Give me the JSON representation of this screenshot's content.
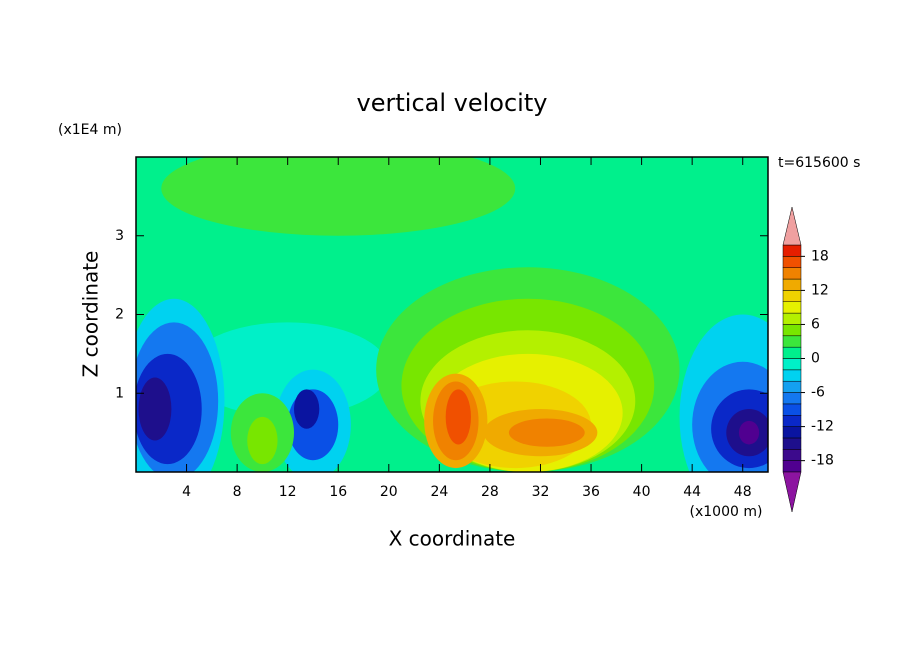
{
  "chart_data": {
    "type": "contourf",
    "title": "vertical velocity",
    "x_label": "X coordinate",
    "y_label": "Z coordinate",
    "x_unit": "(x1000 m)",
    "y_unit": "(x1E4 m)",
    "time_label": "t=615600 s",
    "xlim": [
      0,
      50
    ],
    "ylim": [
      0,
      4
    ],
    "xticks": [
      4,
      8,
      12,
      16,
      20,
      24,
      28,
      32,
      36,
      40,
      44,
      48
    ],
    "yticks": [
      1,
      2,
      3
    ],
    "levels": [
      -20,
      -18,
      -16,
      -14,
      -12,
      -10,
      -8,
      -6,
      -4,
      -2,
      0,
      2,
      4,
      6,
      8,
      10,
      12,
      14,
      16,
      18,
      20
    ],
    "colors": [
      "#500090",
      "#3c0a8c",
      "#1e0f8c",
      "#0a14a0",
      "#0a28c8",
      "#0a50e6",
      "#1478f0",
      "#14a0f0",
      "#00d2f0",
      "#00f0c8",
      "#00f08c",
      "#3ce63c",
      "#78e600",
      "#b4f000",
      "#e6f000",
      "#f0d200",
      "#f0aa00",
      "#f08200",
      "#f05000",
      "#e61e00"
    ],
    "under_color": "#8c14a0",
    "over_color": "#f0a0a0",
    "colorbar_ticks": [
      -18,
      -12,
      -6,
      0,
      6,
      12,
      18
    ],
    "background_value": 1,
    "blobs": [
      {
        "x": 16,
        "z": 3.6,
        "rx": 14,
        "rz": 0.6,
        "value": 3
      },
      {
        "x": 12,
        "z": 1.3,
        "rx": 8,
        "rz": 0.6,
        "value": -1
      },
      {
        "x": 31,
        "z": 1.3,
        "rx": 12,
        "rz": 1.3,
        "value": 3
      },
      {
        "x": 31,
        "z": 1.1,
        "rx": 10,
        "rz": 1.1,
        "value": 5
      },
      {
        "x": 31,
        "z": 0.9,
        "rx": 8.5,
        "rz": 0.9,
        "value": 7
      },
      {
        "x": 31,
        "z": 0.75,
        "rx": 7.5,
        "rz": 0.75,
        "value": 9
      },
      {
        "x": 30,
        "z": 0.6,
        "rx": 6,
        "rz": 0.55,
        "value": 11
      },
      {
        "x": 25.3,
        "z": 0.65,
        "rx": 2.5,
        "rz": 0.6,
        "value": 13
      },
      {
        "x": 25.3,
        "z": 0.65,
        "rx": 1.8,
        "rz": 0.5,
        "value": 15
      },
      {
        "x": 25.5,
        "z": 0.7,
        "rx": 1,
        "rz": 0.35,
        "value": 17
      },
      {
        "x": 32,
        "z": 0.5,
        "rx": 4.5,
        "rz": 0.3,
        "value": 13
      },
      {
        "x": 32.5,
        "z": 0.5,
        "rx": 3,
        "rz": 0.18,
        "value": 15
      },
      {
        "x": 3,
        "z": 0.9,
        "rx": 4,
        "rz": 1.3,
        "value": -3
      },
      {
        "x": 3,
        "z": 0.9,
        "rx": 3.5,
        "rz": 1.0,
        "value": -7
      },
      {
        "x": 2.5,
        "z": 0.8,
        "rx": 2.7,
        "rz": 0.7,
        "value": -11
      },
      {
        "x": 1.5,
        "z": 0.8,
        "rx": 1.3,
        "rz": 0.4,
        "value": -15
      },
      {
        "x": 48,
        "z": 0.7,
        "rx": 5,
        "rz": 1.3,
        "value": -3
      },
      {
        "x": 48,
        "z": 0.6,
        "rx": 4,
        "rz": 0.8,
        "value": -7
      },
      {
        "x": 48.5,
        "z": 0.55,
        "rx": 3,
        "rz": 0.5,
        "value": -11
      },
      {
        "x": 48.5,
        "z": 0.5,
        "rx": 1.8,
        "rz": 0.3,
        "value": -15
      },
      {
        "x": 48.5,
        "z": 0.5,
        "rx": 0.8,
        "rz": 0.15,
        "value": -19
      },
      {
        "x": 14,
        "z": 0.6,
        "rx": 3,
        "rz": 0.7,
        "value": -3
      },
      {
        "x": 14,
        "z": 0.6,
        "rx": 2,
        "rz": 0.45,
        "value": -9
      },
      {
        "x": 13.5,
        "z": 0.8,
        "rx": 1,
        "rz": 0.25,
        "value": -13
      },
      {
        "x": 10,
        "z": 0.5,
        "rx": 2.5,
        "rz": 0.5,
        "value": 3
      },
      {
        "x": 10,
        "z": 0.4,
        "rx": 1.2,
        "rz": 0.3,
        "value": 5
      }
    ]
  }
}
